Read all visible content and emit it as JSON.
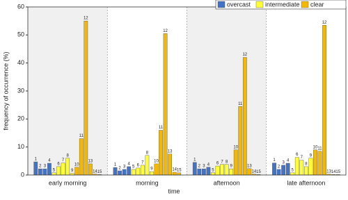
{
  "chart_data": {
    "type": "grouped-bar",
    "xlabel": "time",
    "ylabel": "frequency of occurrence (%)",
    "categories": [
      "early morning",
      "morning",
      "afternoon",
      "late afternoon"
    ],
    "ylim": [
      0,
      60
    ],
    "yticks": [
      0,
      10,
      20,
      30,
      40,
      50,
      60
    ],
    "series": [
      {
        "name": "overcast",
        "color": "#4472c4",
        "labels": [
          1,
          2,
          3,
          4
        ],
        "values": [
          [
            4.7,
            2.2,
            2.2,
            4.2
          ],
          [
            2.7,
            1.5,
            2,
            3
          ],
          [
            4.5,
            2.2,
            2.2,
            2.8
          ],
          [
            4.3,
            2,
            3.5,
            4.2
          ]
        ]
      },
      {
        "name": "intermediate",
        "color": "#ffff33",
        "labels": [
          5,
          6,
          7,
          8,
          9
        ],
        "values": [
          [
            0.8,
            3,
            4.3,
            6,
            0.6
          ],
          [
            2,
            2.5,
            3.5,
            7,
            1.2
          ],
          [
            0.8,
            3.2,
            3.8,
            3.8,
            2.2
          ],
          [
            0.8,
            6.3,
            5.3,
            3,
            6
          ]
        ]
      },
      {
        "name": "clear",
        "color": "#f5b800",
        "labels": [
          10,
          11,
          12,
          13,
          14,
          15
        ],
        "values": [
          [
            2.8,
            13,
            55,
            4,
            0.3,
            0.2
          ],
          [
            4,
            16,
            50.5,
            7.5,
            1,
            0.8
          ],
          [
            9,
            24.5,
            42,
            2.3,
            0.3,
            0.2
          ],
          [
            9,
            8.5,
            53.5,
            0.3,
            0.2,
            0.2
          ]
        ]
      }
    ]
  }
}
